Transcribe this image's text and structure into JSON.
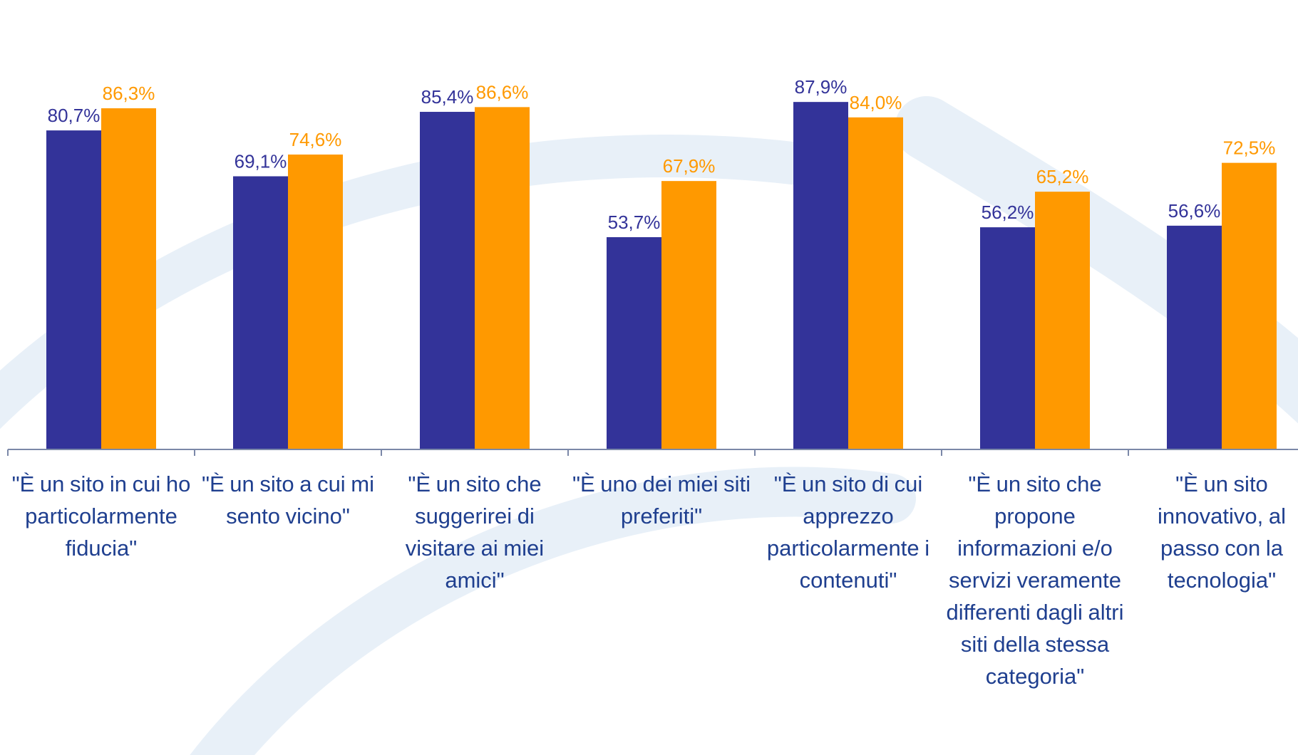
{
  "colors": {
    "series1": "#333399",
    "series2": "#ff9900",
    "category_text": "#1f3f8f",
    "axis": "#7b88a8",
    "watermark": "#e8f0f8"
  },
  "chart_data": {
    "type": "bar",
    "categories": [
      "\"È un sito in cui ho particolarmente fiducia\"",
      "\"È un sito a cui mi sento vicino\"",
      "\"È un sito che suggerirei di visitare ai miei amici\"",
      "\"È uno dei miei siti preferiti\"",
      "\"È un sito di cui apprezzo particolarmente i contenuti\"",
      "\"È un sito che propone informazioni e/o servizi veramente differenti dagli altri siti della stessa categoria\"",
      "\"È un sito innovativo, al passo con la tecnologia\""
    ],
    "series": [
      {
        "values": [
          80.7,
          69.1,
          85.4,
          53.7,
          87.9,
          56.2,
          56.6
        ],
        "labels": [
          "80,7%",
          "69,1%",
          "85,4%",
          "53,7%",
          "87,9%",
          "56,2%",
          "56,6%"
        ]
      },
      {
        "values": [
          86.3,
          74.6,
          86.6,
          67.9,
          84.0,
          65.2,
          72.5
        ],
        "labels": [
          "86,3%",
          "74,6%",
          "86,6%",
          "67,9%",
          "84,0%",
          "65,2%",
          "72,5%"
        ]
      }
    ],
    "ylim": [
      0,
      100
    ],
    "grid": false,
    "legend": "none"
  }
}
